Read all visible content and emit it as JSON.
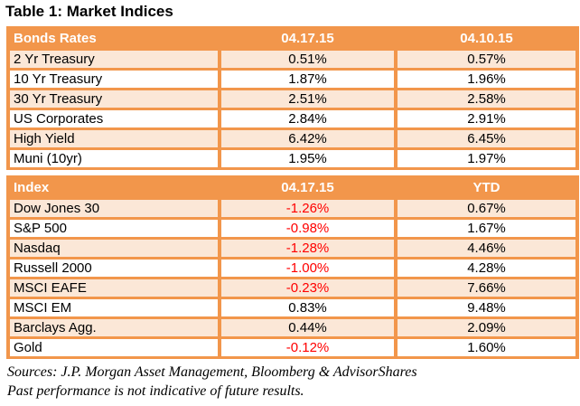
{
  "title": "Table 1: Market Indices",
  "colors": {
    "header_orange": "#F2964B",
    "row_peach": "#FBE7D7",
    "negative_red": "#FF0000"
  },
  "tables": [
    {
      "name": "bonds-rates",
      "headers": [
        "Bonds Rates",
        "04.17.15",
        "04.10.15"
      ],
      "rows": [
        {
          "label": "2 Yr Treasury",
          "values": [
            "0.51%",
            "0.57%"
          ]
        },
        {
          "label": "10 Yr Treasury",
          "values": [
            "1.87%",
            "1.96%"
          ]
        },
        {
          "label": "30 Yr Treasury",
          "values": [
            "2.51%",
            "2.58%"
          ]
        },
        {
          "label": "US Corporates",
          "values": [
            "2.84%",
            "2.91%"
          ]
        },
        {
          "label": "High Yield",
          "values": [
            "6.42%",
            "6.45%"
          ]
        },
        {
          "label": "Muni (10yr)",
          "values": [
            "1.95%",
            "1.97%"
          ]
        }
      ]
    },
    {
      "name": "index",
      "headers": [
        "Index",
        "04.17.15",
        "YTD"
      ],
      "rows": [
        {
          "label": "Dow Jones 30",
          "values": [
            "-1.26%",
            "0.67%"
          ]
        },
        {
          "label": "S&P 500",
          "values": [
            "-0.98%",
            "1.67%"
          ]
        },
        {
          "label": "Nasdaq",
          "values": [
            "-1.28%",
            "4.46%"
          ]
        },
        {
          "label": "Russell 2000",
          "values": [
            "-1.00%",
            "4.28%"
          ]
        },
        {
          "label": "MSCI EAFE",
          "values": [
            "-0.23%",
            "7.66%"
          ]
        },
        {
          "label": "MSCI EM",
          "values": [
            "0.83%",
            "9.48%"
          ]
        },
        {
          "label": "Barclays Agg.",
          "values": [
            "0.44%",
            "2.09%"
          ]
        },
        {
          "label": "Gold",
          "values": [
            "-0.12%",
            "1.60%"
          ]
        }
      ]
    }
  ],
  "footer": {
    "sources": "Sources: J.P. Morgan Asset Management, Bloomberg & AdvisorShares",
    "disclaimer": "Past performance is not indicative of future results."
  }
}
